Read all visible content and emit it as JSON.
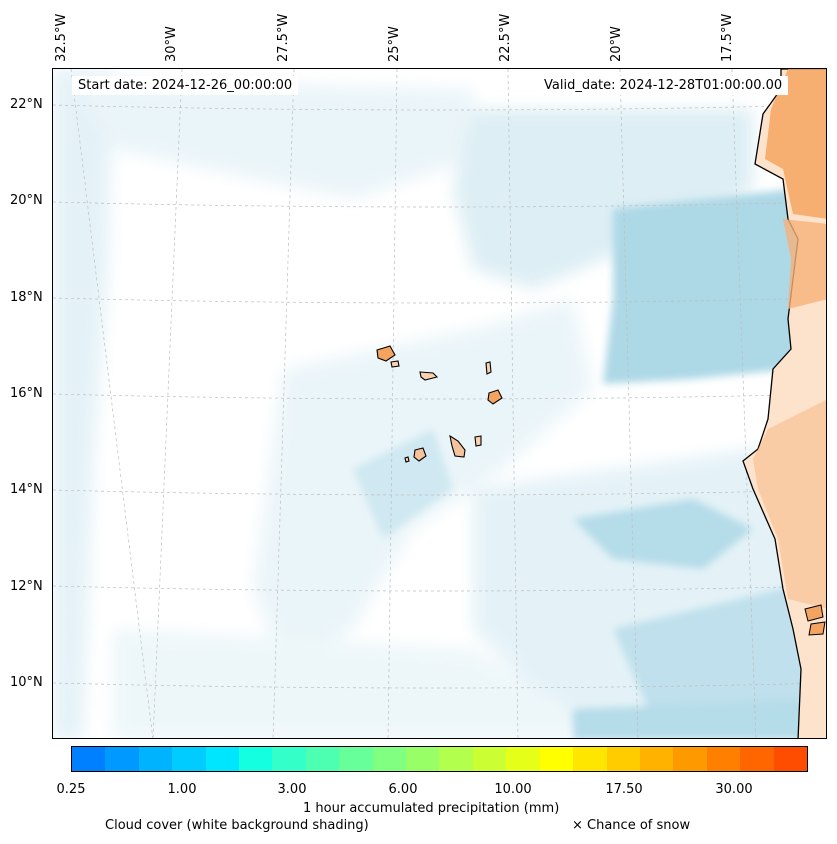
{
  "map": {
    "start_date": "Start date: 2024-12-26_00:00:00",
    "valid_date": "Valid_date: 2024-12-28T01:00:00.00",
    "lon_labels": [
      "32.5°W",
      "30°W",
      "27.5°W",
      "25°W",
      "22.5°W",
      "20°W",
      "17.5°W"
    ],
    "lat_labels": [
      "22°N",
      "20°N",
      "18°N",
      "16°N",
      "14°N",
      "12°N",
      "10°N"
    ],
    "colors": {
      "cloud_light": "#dceef5",
      "cloud_dark": "#add8e6",
      "land_precip": "#f4a460",
      "land_light": "#fbd2b0",
      "coastline": "#000000",
      "gridline": "#bdbdbd"
    }
  },
  "colorbar": {
    "tick_labels": [
      "0.25",
      "1.00",
      "3.00",
      "6.00",
      "10.00",
      "17.50",
      "30.00"
    ],
    "colors": [
      "#0080ff",
      "#0099ff",
      "#00b3ff",
      "#00ccff",
      "#00e6ff",
      "#14ffe0",
      "#33ffc8",
      "#4dffb0",
      "#66ff99",
      "#80ff80",
      "#99ff66",
      "#b3ff4d",
      "#ccff33",
      "#e6ff19",
      "#ffff00",
      "#ffe600",
      "#ffcc00",
      "#ffb300",
      "#ff9900",
      "#ff8000",
      "#ff6600",
      "#ff4d00"
    ],
    "label": "1 hour accumulated precipitation (mm)"
  },
  "legend": {
    "cloud_cover": "Cloud cover (white background shading)",
    "snow": "× Chance of snow"
  }
}
